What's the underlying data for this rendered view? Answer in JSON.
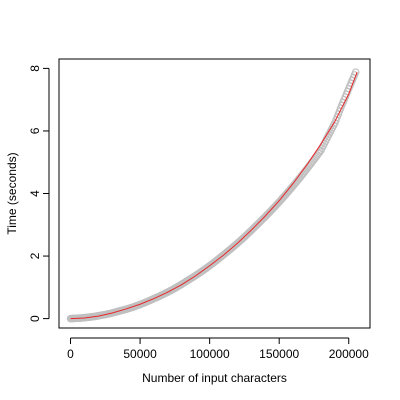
{
  "chart_data": {
    "type": "scatter",
    "title": "",
    "xlabel": "Number of input characters",
    "ylabel": "Time (seconds)",
    "xlim": [
      -8280,
      215280
    ],
    "ylim": [
      -0.3,
      8.3
    ],
    "x_ticks": [
      0,
      50000,
      100000,
      150000,
      200000
    ],
    "x_tick_labels": [
      "0",
      "50000",
      "100000",
      "150000",
      "200000"
    ],
    "y_ticks": [
      0,
      2,
      4,
      6,
      8
    ],
    "y_tick_labels": [
      "0",
      "2",
      "4",
      "6",
      "8"
    ],
    "grid": false,
    "legend": "none",
    "series": [
      {
        "kind": "points",
        "color": "#c0c0c0",
        "points": [
          [
            0,
            0.0
          ],
          [
            4000,
            0.01
          ],
          [
            8000,
            0.02
          ],
          [
            12000,
            0.04
          ],
          [
            16000,
            0.06
          ],
          [
            20000,
            0.09
          ],
          [
            25000,
            0.13
          ],
          [
            30000,
            0.18
          ],
          [
            35000,
            0.24
          ],
          [
            40000,
            0.3
          ],
          [
            45000,
            0.37
          ],
          [
            50000,
            0.45
          ],
          [
            55000,
            0.54
          ],
          [
            60000,
            0.64
          ],
          [
            65000,
            0.74
          ],
          [
            70000,
            0.85
          ],
          [
            75000,
            0.97
          ],
          [
            80000,
            1.1
          ],
          [
            85000,
            1.24
          ],
          [
            90000,
            1.38
          ],
          [
            95000,
            1.53
          ],
          [
            100000,
            1.69
          ],
          [
            105000,
            1.86
          ],
          [
            110000,
            2.04
          ],
          [
            115000,
            2.22
          ],
          [
            120000,
            2.41
          ],
          [
            125000,
            2.61
          ],
          [
            130000,
            2.82
          ],
          [
            135000,
            3.04
          ],
          [
            140000,
            3.26
          ],
          [
            145000,
            3.49
          ],
          [
            150000,
            3.73
          ],
          [
            155000,
            3.98
          ],
          [
            160000,
            4.24
          ],
          [
            165000,
            4.51
          ],
          [
            170000,
            4.79
          ],
          [
            175000,
            5.08
          ],
          [
            180000,
            5.38
          ],
          [
            185000,
            5.82
          ],
          [
            190000,
            6.25
          ],
          [
            195000,
            6.82
          ],
          [
            200000,
            7.35
          ],
          [
            205000,
            7.88
          ]
        ]
      },
      {
        "kind": "line",
        "color": "#e8262a",
        "points": [
          [
            0,
            0.0
          ],
          [
            10000,
            0.02
          ],
          [
            20000,
            0.08
          ],
          [
            30000,
            0.18
          ],
          [
            40000,
            0.31
          ],
          [
            50000,
            0.46
          ],
          [
            60000,
            0.64
          ],
          [
            70000,
            0.85
          ],
          [
            80000,
            1.09
          ],
          [
            90000,
            1.37
          ],
          [
            100000,
            1.69
          ],
          [
            110000,
            2.03
          ],
          [
            120000,
            2.41
          ],
          [
            130000,
            2.83
          ],
          [
            140000,
            3.28
          ],
          [
            150000,
            3.77
          ],
          [
            160000,
            4.32
          ],
          [
            170000,
            4.92
          ],
          [
            180000,
            5.58
          ],
          [
            190000,
            6.3
          ],
          [
            200000,
            7.18
          ],
          [
            206000,
            7.88
          ]
        ]
      }
    ]
  }
}
